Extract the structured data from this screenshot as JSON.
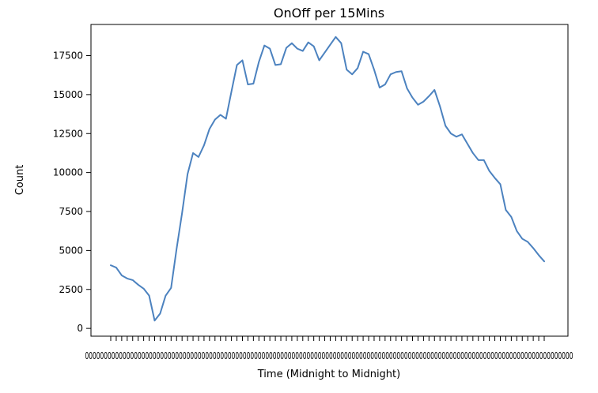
{
  "chart_data": {
    "type": "line",
    "title": "OnOff per 15Mins",
    "xlabel": "Time (Midnight to Midnight)",
    "ylabel": "Count",
    "ylim": [
      -500,
      19500
    ],
    "yticks": [
      0,
      2500,
      5000,
      7500,
      10000,
      12500,
      15000,
      17500
    ],
    "grid": false,
    "series": [
      {
        "color": "#4c82bf",
        "values": [
          4050,
          3900,
          3400,
          3200,
          3100,
          2800,
          2550,
          2100,
          500,
          950,
          2100,
          2600,
          5100,
          7400,
          9900,
          11250,
          11000,
          11750,
          12800,
          13400,
          13700,
          13450,
          15200,
          16900,
          17200,
          15650,
          15700,
          17100,
          18150,
          17950,
          16900,
          16950,
          18000,
          18300,
          17950,
          17800,
          18350,
          18100,
          17200,
          17700,
          18200,
          18700,
          18300,
          16600,
          16300,
          16700,
          17750,
          17600,
          16600,
          15450,
          15650,
          16300,
          16450,
          16500,
          15400,
          14800,
          14350,
          14550,
          14900,
          15300,
          14250,
          13000,
          12500,
          12300,
          12450,
          11850,
          11250,
          10800,
          10800,
          10100,
          9650,
          9250,
          7600,
          7150,
          6250,
          5750,
          5550,
          5150,
          4700,
          4300
        ]
      }
    ],
    "x_tick_text": "0000000000000000000000000000000000000000000000000000000000000000000000000000000000000000000000000000000000000000000000000000000000"
  }
}
